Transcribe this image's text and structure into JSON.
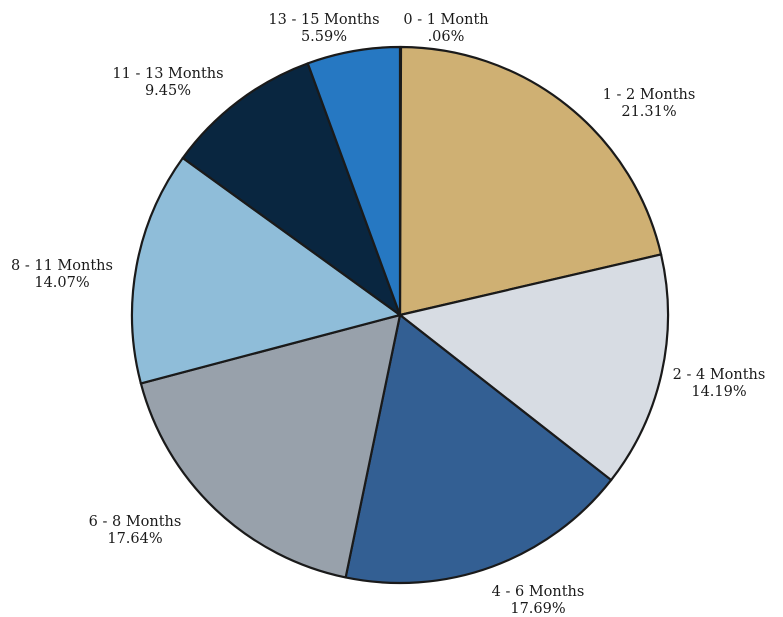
{
  "chart_data": {
    "type": "pie",
    "title": "",
    "slices": [
      {
        "label": "0 - 1 Month",
        "percent_text": ".06%",
        "value": 0.06,
        "color": "#2a2a2a"
      },
      {
        "label": "1 - 2 Months",
        "percent_text": "21.31%",
        "value": 21.31,
        "color": "#cfb073"
      },
      {
        "label": "2 - 4 Months",
        "percent_text": "14.19%",
        "value": 14.19,
        "color": "#d7dce3"
      },
      {
        "label": "4 - 6 Months",
        "percent_text": "17.69%",
        "value": 17.69,
        "color": "#335f93"
      },
      {
        "label": "6 - 8 Months",
        "percent_text": "17.64%",
        "value": 17.64,
        "color": "#98a1ab"
      },
      {
        "label": "8 - 11 Months",
        "percent_text": "14.07%",
        "value": 14.07,
        "color": "#8fbdd9"
      },
      {
        "label": "11 - 13 Months",
        "percent_text": "9.45%",
        "value": 9.45,
        "color": "#092640"
      },
      {
        "label": "13 - 15 Months",
        "percent_text": "5.59%",
        "value": 5.59,
        "color": "#2678c2"
      }
    ],
    "start_angle_deg": 0,
    "direction": "clockwise",
    "legend": "none"
  }
}
